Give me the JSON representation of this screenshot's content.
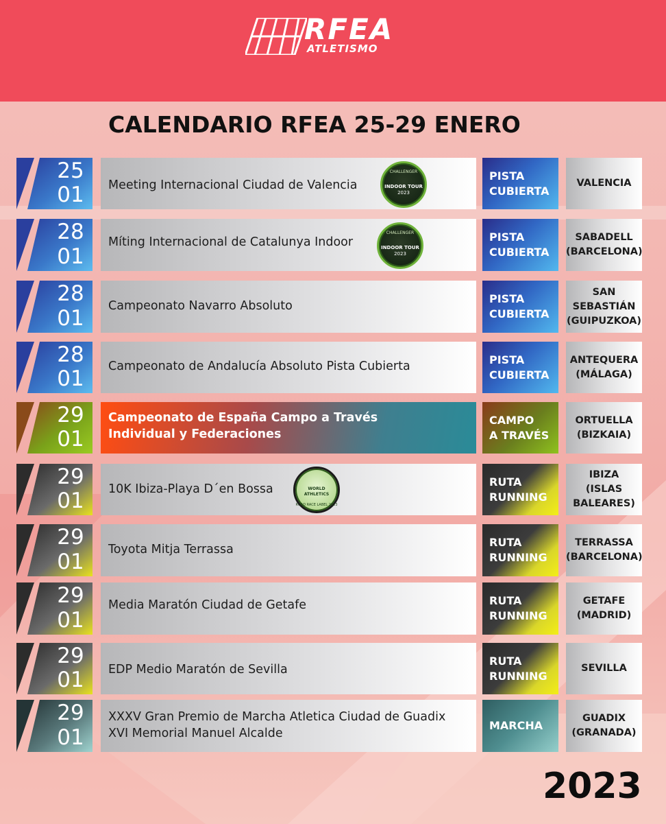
{
  "brand": {
    "logo_text": "RFEA",
    "logo_subtext": "ATLETISMO"
  },
  "title": "CALENDARIO RFEA  25-29 ENERO",
  "year": "2023",
  "colors": {
    "header": "#f04b5a",
    "pista": "#3167c4",
    "campo": "#8fc21e",
    "ruta": "#f4ee16",
    "marcha": "#95cfcb"
  },
  "events": [
    {
      "day": "25",
      "month": "01",
      "name": "Meeting Internacional Ciudad de Valencia",
      "type": "PISTA\nCUBIERTA",
      "location": "VALENCIA",
      "badge": {
        "kind": "challenger",
        "l1": "CHALLENGER",
        "l2": "INDOOR TOUR",
        "l3": "2023"
      }
    },
    {
      "day": "28",
      "month": "01",
      "name": "Míting Internacional de Catalunya Indoor",
      "type": "PISTA\nCUBIERTA",
      "location": "SABADELL\n(BARCELONA)",
      "badge": {
        "kind": "challenger",
        "l1": "CHALLENGER",
        "l2": "INDOOR TOUR",
        "l3": "2023"
      }
    },
    {
      "day": "28",
      "month": "01",
      "name": "Campeonato Navarro Absoluto",
      "type": "PISTA\nCUBIERTA",
      "location": "SAN\nSEBASTIÁN\n(GUIPUZKOA)"
    },
    {
      "day": "28",
      "month": "01",
      "name": "Campeonato de Andalucía Absoluto Pista Cubierta",
      "type": "PISTA\nCUBIERTA",
      "location": "ANTEQUERA\n(MÁLAGA)"
    },
    {
      "day": "29",
      "month": "01",
      "name": "Campeonato de España Campo a Través\nIndividual y Federaciones",
      "type": "CAMPO\nA TRAVÉS",
      "location": "ORTUELLA\n(BIZKAIA)",
      "featured": true
    },
    {
      "day": "29",
      "month": "01",
      "name": "10K Ibiza-Playa D´en Bossa",
      "type": "RUTA\nRUNNING",
      "location": "IBIZA\n(ISLAS\nBALEARES)",
      "badge": {
        "kind": "wa",
        "l1": "WORLD",
        "l2": "ATHLETICS",
        "l3": "ROAD RACE LABEL 2023"
      }
    },
    {
      "day": "29",
      "month": "01",
      "name": "Toyota Mitja Terrassa",
      "type": "RUTA\nRUNNING",
      "location": "TERRASSA\n(BARCELONA)"
    },
    {
      "day": "29",
      "month": "01",
      "name": "Media Maratón Ciudad de Getafe",
      "type": "RUTA\nRUNNING",
      "location": "GETAFE\n(MADRID)"
    },
    {
      "day": "29",
      "month": "01",
      "name": "EDP Medio Maratón de Sevilla",
      "type": "RUTA\nRUNNING",
      "location": "SEVILLA"
    },
    {
      "day": "29",
      "month": "01",
      "name": "XXXV Gran Premio de Marcha Atletica Ciudad de Guadix\nXVI Memorial Manuel Alcalde",
      "type": "MARCHA",
      "location": "GUADIX\n(GRANADA)"
    }
  ]
}
